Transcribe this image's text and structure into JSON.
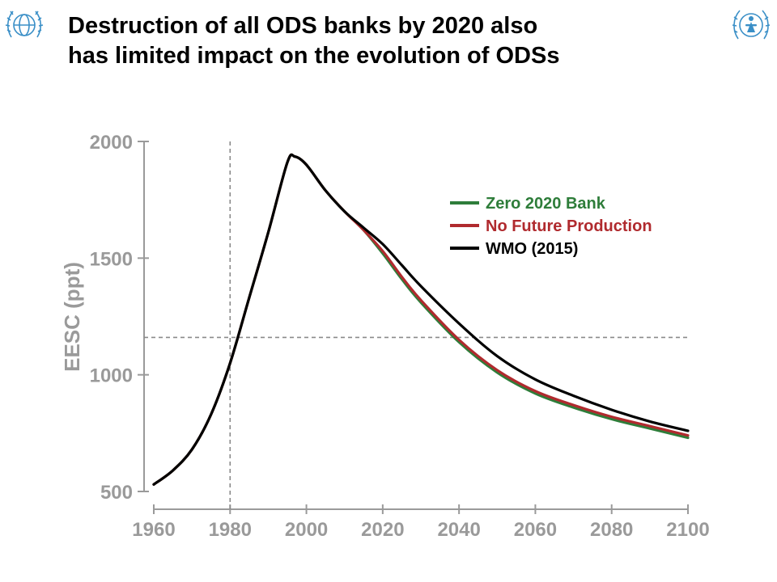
{
  "slide": {
    "title_lines": [
      "Destruction of all ODS banks by 2020 also",
      "has limited impact on the evolution of ODSs"
    ]
  },
  "logos": {
    "left_icon": "wmo-emblem-icon",
    "right_icon": "unep-emblem-icon"
  },
  "colors": {
    "emblem_blue": "#3a8fc7",
    "axis_gray": "#9a9a9a",
    "zero_bank": "#2e7d3a",
    "no_future": "#b02a2e",
    "wmo": "#000000"
  },
  "chart_data": {
    "type": "line",
    "title": "",
    "xlabel": "",
    "ylabel": "EESC (ppt)",
    "xlim": [
      1960,
      2100
    ],
    "ylim": [
      500,
      2000
    ],
    "x_ticks": [
      "1960",
      "1980",
      "2000",
      "2020",
      "2040",
      "2060",
      "2080",
      "2100"
    ],
    "y_ticks": [
      "500",
      "1000",
      "1500",
      "2000"
    ],
    "grid": false,
    "legend_position": "top-right",
    "reference_lines": [
      {
        "orientation": "vertical",
        "x": 1980,
        "style": "dashed"
      },
      {
        "orientation": "horizontal",
        "y": 1160,
        "style": "dashed"
      }
    ],
    "series": [
      {
        "name": "Zero 2020 Bank",
        "color": "#2e7d3a",
        "x": [
          1960,
          1965,
          1970,
          1975,
          1980,
          1985,
          1990,
          1995,
          1997,
          2000,
          2005,
          2010,
          2015,
          2020,
          2025,
          2030,
          2040,
          2050,
          2060,
          2070,
          2080,
          2090,
          2100
        ],
        "y": [
          530,
          590,
          680,
          830,
          1050,
          1330,
          1610,
          1910,
          1935,
          1900,
          1790,
          1700,
          1620,
          1520,
          1410,
          1310,
          1140,
          1010,
          920,
          860,
          810,
          770,
          730
        ]
      },
      {
        "name": "No Future Production",
        "color": "#b02a2e",
        "x": [
          1960,
          1965,
          1970,
          1975,
          1980,
          1985,
          1990,
          1995,
          1997,
          2000,
          2005,
          2010,
          2015,
          2020,
          2025,
          2030,
          2040,
          2050,
          2060,
          2070,
          2080,
          2090,
          2100
        ],
        "y": [
          530,
          590,
          680,
          830,
          1050,
          1330,
          1610,
          1910,
          1935,
          1900,
          1790,
          1700,
          1620,
          1530,
          1420,
          1320,
          1150,
          1020,
          930,
          870,
          820,
          780,
          740
        ]
      },
      {
        "name": "WMO (2015)",
        "color": "#000000",
        "x": [
          1960,
          1965,
          1970,
          1975,
          1980,
          1985,
          1990,
          1995,
          1997,
          2000,
          2005,
          2010,
          2015,
          2020,
          2025,
          2030,
          2040,
          2050,
          2060,
          2070,
          2080,
          2090,
          2100
        ],
        "y": [
          530,
          590,
          680,
          830,
          1050,
          1330,
          1610,
          1910,
          1935,
          1900,
          1790,
          1700,
          1630,
          1560,
          1470,
          1380,
          1220,
          1080,
          980,
          910,
          850,
          800,
          760
        ]
      }
    ]
  }
}
